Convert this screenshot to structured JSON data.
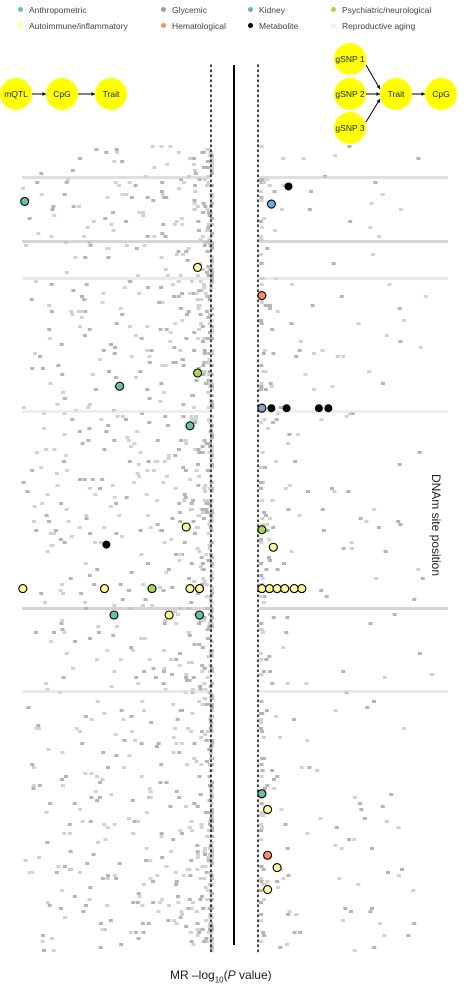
{
  "legend": [
    {
      "label": "Anthropometric",
      "color": "#66c2a5"
    },
    {
      "label": "Glycemic",
      "color": "#8da0cb"
    },
    {
      "label": "Kidney",
      "color": "#6baed6"
    },
    {
      "label": "Psychiatric/neurological",
      "color": "#a6d854"
    },
    {
      "label": "Autoimmune/inflammatory",
      "color": "#ffff99"
    },
    {
      "label": "Hematological",
      "color": "#fc8d62"
    },
    {
      "label": "Metabolite",
      "color": "#000000"
    },
    {
      "label": "Reproductive aging",
      "color": "#f0f0f0"
    }
  ],
  "diagram_left": {
    "nodes": [
      "mQTL",
      "CpG",
      "Trait"
    ],
    "node_color": "#ffff00"
  },
  "diagram_right": {
    "inputs": [
      "gSNP 1",
      "gSNP 2",
      "gSNP 3"
    ],
    "center": "Trait",
    "output": "CpG",
    "node_color": "#ffff00"
  },
  "axis": {
    "xlabel_prefix": "MR –log",
    "xlabel_sub": "10",
    "xlabel_open": "(",
    "xlabel_p": "P",
    "xlabel_close": " value)",
    "ylabel": "DNAm site position"
  },
  "chart_data": {
    "type": "scatter",
    "title": "",
    "xlabel": "MR –log10(P value)",
    "ylabel": "DNAm site position",
    "layout": "mirrored panels: left panel CpG→Trait (x increases leftward), right panel Trait→CpG (x increases rightward)",
    "threshold_lines": "dotted significance lines near center of each panel",
    "background_points": "dense gray points (non-significant / sub-threshold associations)",
    "highlighted": {
      "left_panel": [
        {
          "category": "Anthropometric",
          "x": 0.97,
          "y": 0.155
        },
        {
          "category": "Autoimmune/inflammatory",
          "x": 0.06,
          "y": 0.23
        },
        {
          "category": "Psychiatric/neurological",
          "x": 0.06,
          "y": 0.35
        },
        {
          "category": "Anthropometric",
          "x": 0.47,
          "y": 0.365
        },
        {
          "category": "Anthropometric",
          "x": 0.1,
          "y": 0.41
        },
        {
          "category": "Autoimmune/inflammatory",
          "x": 0.12,
          "y": 0.525
        },
        {
          "category": "Metabolite",
          "x": 0.54,
          "y": 0.545
        },
        {
          "category": "Autoimmune/inflammatory",
          "x": 0.98,
          "y": 0.595
        },
        {
          "category": "Autoimmune/inflammatory",
          "x": 0.55,
          "y": 0.595
        },
        {
          "category": "Psychiatric/neurological",
          "x": 0.3,
          "y": 0.595
        },
        {
          "category": "Autoimmune/inflammatory",
          "x": 0.1,
          "y": 0.595
        },
        {
          "category": "Autoimmune/inflammatory",
          "x": 0.05,
          "y": 0.595
        },
        {
          "category": "Anthropometric",
          "x": 0.5,
          "y": 0.625
        },
        {
          "category": "Autoimmune/inflammatory",
          "x": 0.21,
          "y": 0.625
        },
        {
          "category": "Anthropometric",
          "x": 0.05,
          "y": 0.625
        }
      ],
      "right_panel": [
        {
          "category": "Metabolite",
          "x": 0.15,
          "y": 0.138
        },
        {
          "category": "Kidney",
          "x": 0.06,
          "y": 0.158
        },
        {
          "category": "Hematological",
          "x": 0.01,
          "y": 0.262
        },
        {
          "category": "Glycemic",
          "x": 0.01,
          "y": 0.39
        },
        {
          "category": "Metabolite",
          "x": 0.06,
          "y": 0.39
        },
        {
          "category": "Metabolite",
          "x": 0.14,
          "y": 0.39
        },
        {
          "category": "Metabolite",
          "x": 0.31,
          "y": 0.39
        },
        {
          "category": "Metabolite",
          "x": 0.36,
          "y": 0.39
        },
        {
          "category": "Psychiatric/neurological",
          "x": 0.01,
          "y": 0.528
        },
        {
          "category": "Autoimmune/inflammatory",
          "x": 0.07,
          "y": 0.548
        },
        {
          "category": "Autoimmune/inflammatory",
          "x": 0.01,
          "y": 0.595
        },
        {
          "category": "Autoimmune/inflammatory",
          "x": 0.05,
          "y": 0.595
        },
        {
          "category": "Autoimmune/inflammatory",
          "x": 0.09,
          "y": 0.595
        },
        {
          "category": "Autoimmune/inflammatory",
          "x": 0.13,
          "y": 0.595
        },
        {
          "category": "Autoimmune/inflammatory",
          "x": 0.18,
          "y": 0.595
        },
        {
          "category": "Autoimmune/inflammatory",
          "x": 0.22,
          "y": 0.595
        },
        {
          "category": "Anthropometric",
          "x": 0.01,
          "y": 0.828
        },
        {
          "category": "Autoimmune/inflammatory",
          "x": 0.04,
          "y": 0.846
        },
        {
          "category": "Hematological",
          "x": 0.04,
          "y": 0.898
        },
        {
          "category": "Autoimmune/inflammatory",
          "x": 0.09,
          "y": 0.912
        },
        {
          "category": "Autoimmune/inflammatory",
          "x": 0.04,
          "y": 0.937
        }
      ]
    }
  }
}
